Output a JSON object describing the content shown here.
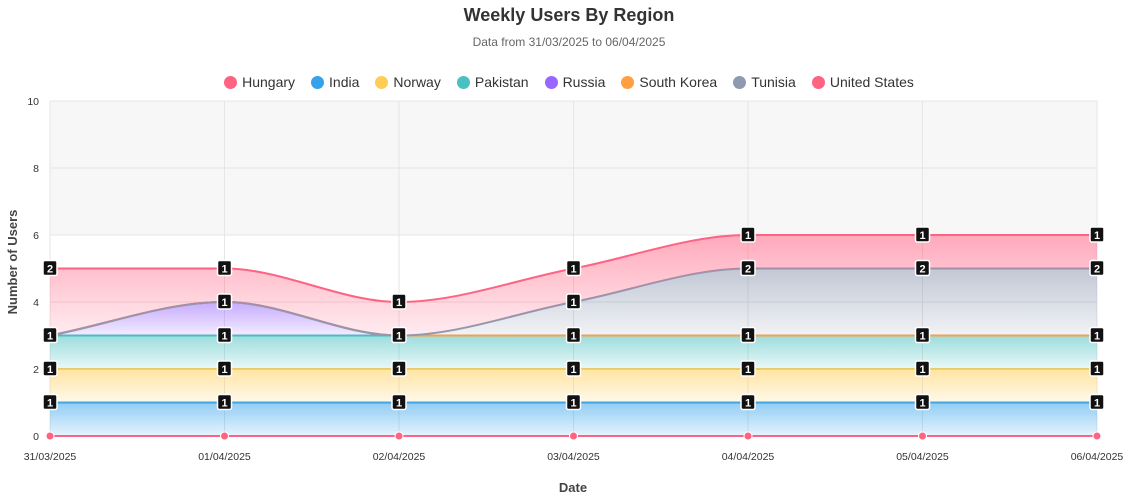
{
  "chart_data": {
    "type": "area",
    "stacked": true,
    "title": "Weekly Users By Region",
    "subtitle": "Data from 31/03/2025 to 06/04/2025",
    "xlabel": "Date",
    "ylabel": "Number of Users",
    "ylim": [
      0,
      10
    ],
    "yticks": [
      "0",
      "2",
      "4",
      "6",
      "8",
      "10"
    ],
    "grid": true,
    "legend_position": "top",
    "categories": [
      "31/03/2025",
      "01/04/2025",
      "02/04/2025",
      "03/04/2025",
      "04/04/2025",
      "05/04/2025",
      "06/04/2025"
    ],
    "series": [
      {
        "name": "Hungary",
        "color": "#ff6384",
        "values": [
          0,
          0,
          0,
          0,
          0,
          0,
          0
        ]
      },
      {
        "name": "India",
        "color": "#36a2eb",
        "values": [
          1,
          1,
          1,
          1,
          1,
          1,
          1
        ]
      },
      {
        "name": "Norway",
        "color": "#ffcd56",
        "values": [
          1,
          1,
          1,
          1,
          1,
          1,
          1
        ]
      },
      {
        "name": "Pakistan",
        "color": "#4bc0c0",
        "values": [
          1,
          1,
          1,
          1,
          1,
          1,
          1
        ]
      },
      {
        "name": "Russia",
        "color": "#9966ff",
        "values": [
          0,
          1,
          0,
          0,
          0,
          0,
          0
        ]
      },
      {
        "name": "South Korea",
        "color": "#ff9f40",
        "values": [
          0,
          0,
          0,
          0,
          0,
          0,
          0
        ]
      },
      {
        "name": "Tunisia",
        "color": "#8e9ab0",
        "values": [
          0,
          0,
          0,
          1,
          2,
          2,
          2
        ]
      },
      {
        "name": "United States",
        "color": "#ff6384",
        "values": [
          2,
          1,
          1,
          1,
          1,
          1,
          1
        ]
      }
    ]
  }
}
